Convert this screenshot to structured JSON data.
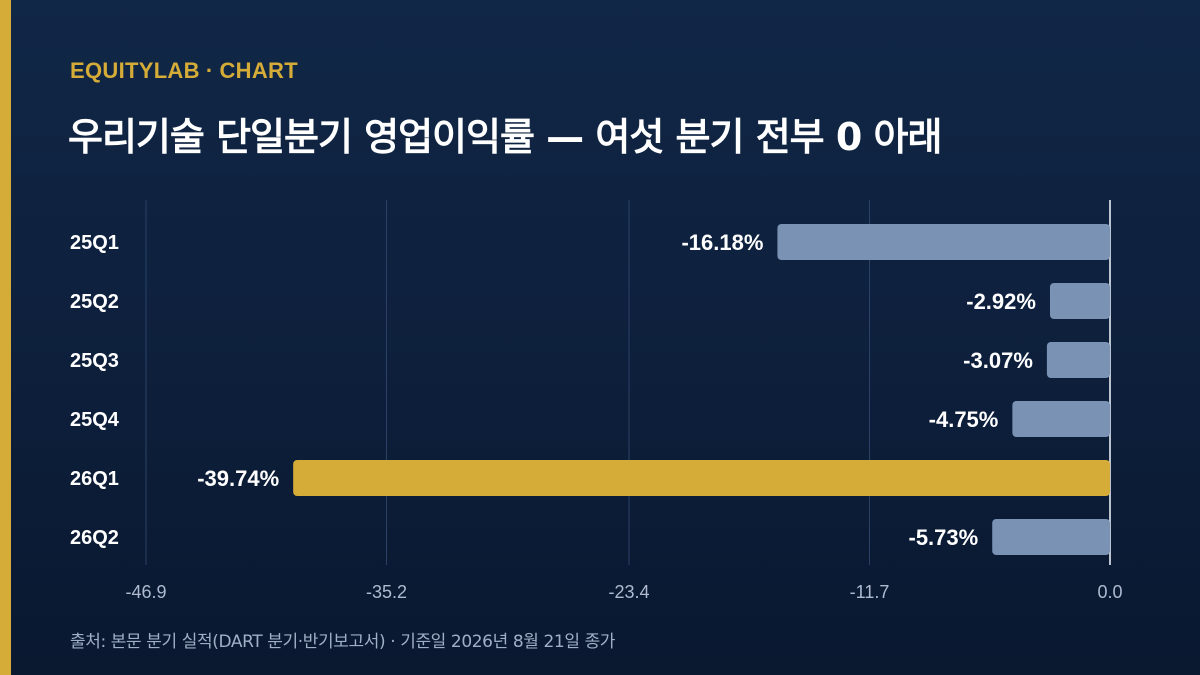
{
  "brand": {
    "name": "EQUITYLAB",
    "separator": "·",
    "section": "CHART"
  },
  "title": "우리기술 단일분기 영업이익률 — 여섯 분기 전부 0 아래",
  "source": "출처: 본문 분기 실적(DART 분기·반기보고서) · 기준일 2026년 8월 21일 종가",
  "colors": {
    "background": "#0d1f3b",
    "accent": "#d4ac37",
    "bar_default": "#7a93b5",
    "bar_highlight": "#d4ac37",
    "gridline": "#2b4266",
    "zero_line": "#e6ecf5"
  },
  "chart_data": {
    "type": "bar",
    "orientation": "horizontal",
    "categories": [
      "25Q1",
      "25Q2",
      "25Q3",
      "25Q4",
      "26Q1",
      "26Q2"
    ],
    "values": [
      -16.18,
      -2.92,
      -3.07,
      -4.75,
      -39.74,
      -5.73
    ],
    "value_labels": [
      "-16.18%",
      "-2.92%",
      "-3.07%",
      "-4.75%",
      "-39.74%",
      "-5.73%"
    ],
    "highlight_category": "26Q1",
    "xlim": [
      -46.9,
      0.0
    ],
    "xticks": [
      -46.9,
      -35.2,
      -23.4,
      -11.7,
      0.0
    ],
    "xtick_labels": [
      "-46.9",
      "-35.2",
      "-23.4",
      "-11.7",
      "0.0"
    ],
    "grid": true,
    "legend": "none"
  }
}
